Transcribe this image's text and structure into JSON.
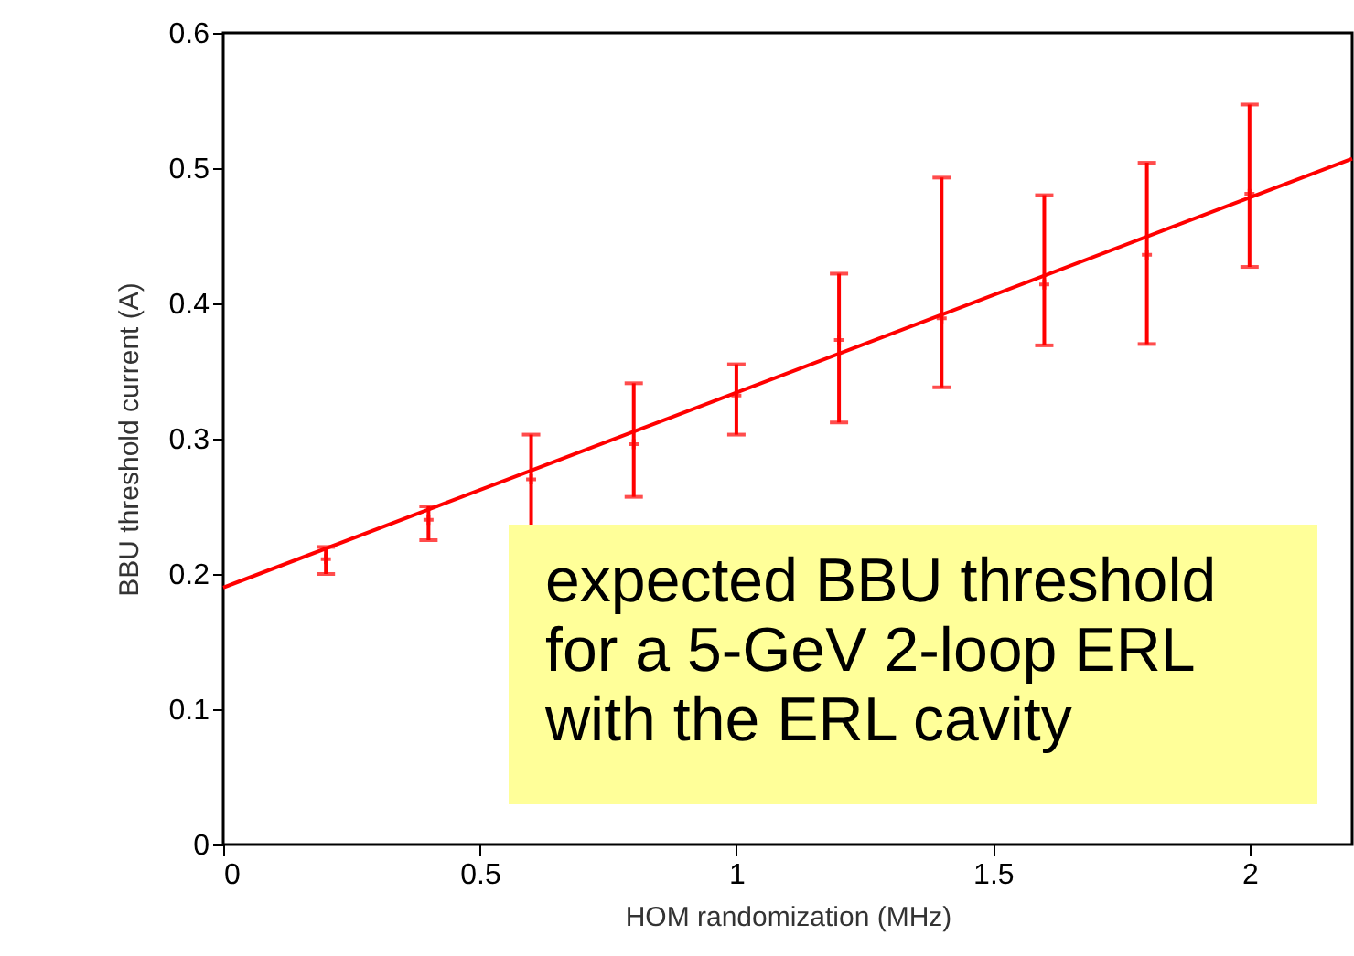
{
  "chart_data": {
    "type": "scatter",
    "xlabel": "HOM randomization (MHz)",
    "ylabel": "BBU threshold current (A)",
    "xlim": [
      0,
      2.2
    ],
    "xticks": [
      0,
      0.5,
      1,
      1.5,
      2
    ],
    "ylim": [
      0,
      0.6
    ],
    "yticks": [
      0,
      0.1,
      0.2,
      0.3,
      0.4,
      0.5,
      0.6
    ],
    "grid": false,
    "series": [
      {
        "type": "line",
        "color": "#ff0000",
        "x": [
          0,
          2.2
        ],
        "values": [
          0.19,
          0.507
        ]
      },
      {
        "marker": "cross",
        "color": "#ff0000",
        "x": [
          0.2,
          0.4,
          0.6,
          0.8,
          1.0,
          1.2,
          1.4,
          1.6,
          1.8,
          2.0
        ],
        "values": [
          0.211,
          0.24,
          0.27,
          0.296,
          0.332,
          0.373,
          0.389,
          0.414,
          0.436,
          0.481
        ],
        "errors": [
          [
            0.2,
            0.22
          ],
          [
            0.225,
            0.25
          ],
          [
            0.235,
            0.303
          ],
          [
            0.257,
            0.341
          ],
          [
            0.303,
            0.355
          ],
          [
            0.312,
            0.422
          ],
          [
            0.338,
            0.493
          ],
          [
            0.369,
            0.48
          ],
          [
            0.37,
            0.504
          ],
          [
            0.427,
            0.547
          ]
        ]
      }
    ],
    "annotations": [
      "expected BBU threshold for a 5-GeV 2-loop ERL with the ERL cavity"
    ]
  }
}
